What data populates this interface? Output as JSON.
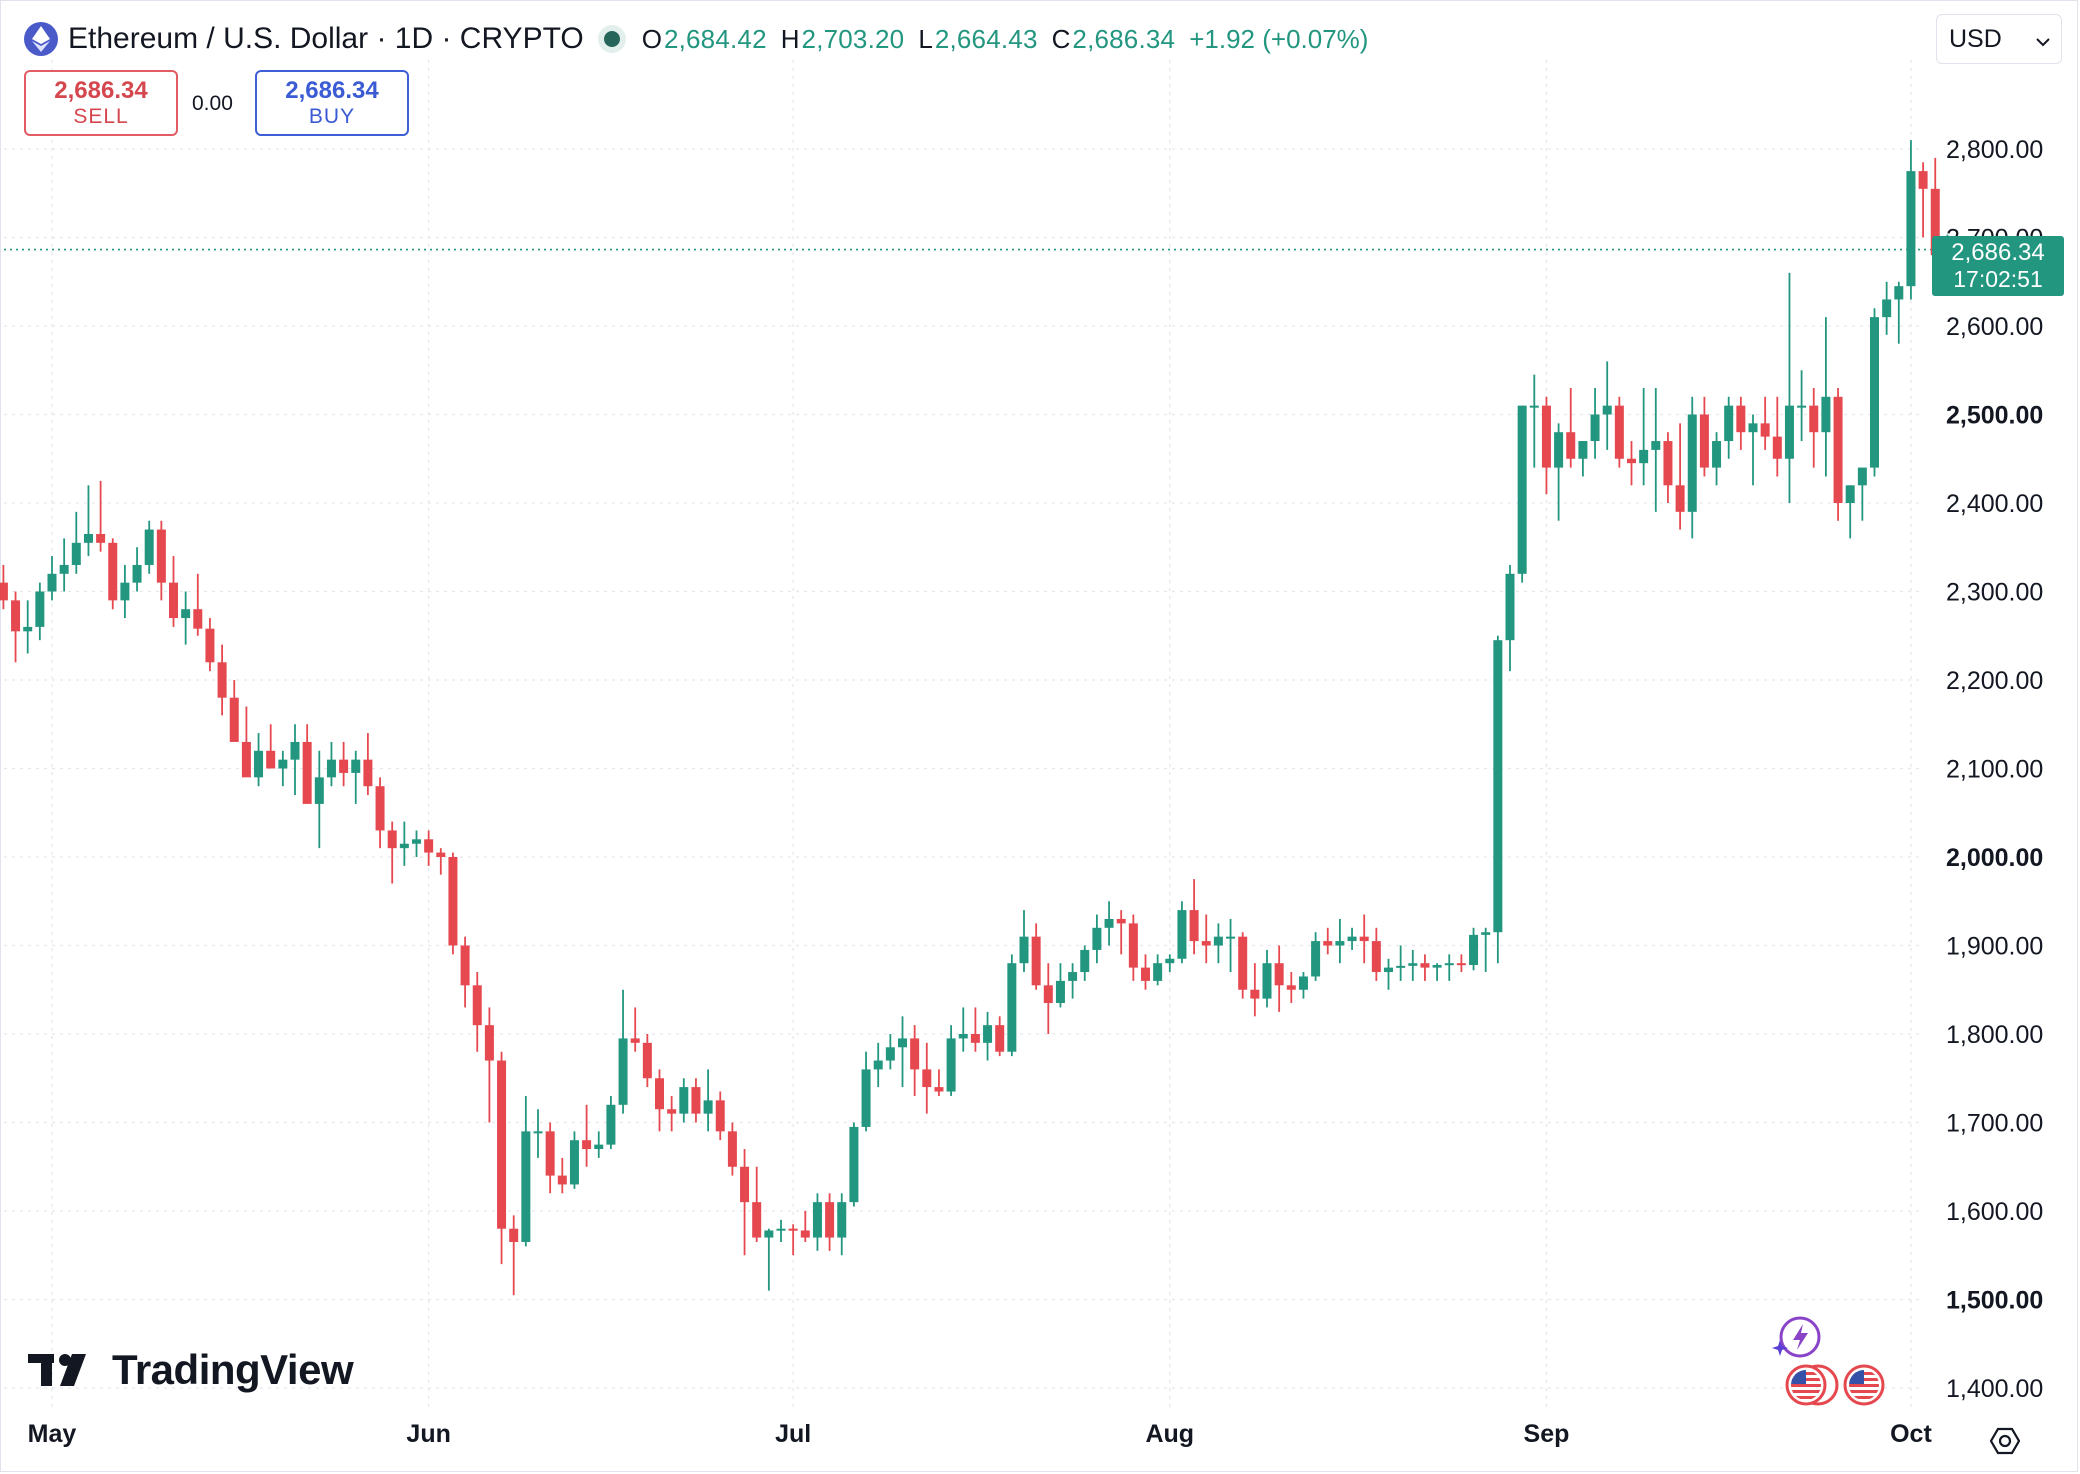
{
  "header": {
    "symbol_title": "Ethereum / U.S. Dollar · 1D · CRYPTO",
    "open_key": "O",
    "open_value": "2,684.42",
    "high_key": "H",
    "high_value": "2,703.20",
    "low_key": "L",
    "low_value": "2,664.43",
    "close_key": "C",
    "close_value": "2,686.34",
    "change": "+1.92 (+0.07%)",
    "logo_icon": "ethereum-icon"
  },
  "currency_selector": {
    "value": "USD",
    "icon": "chevron-down-icon"
  },
  "trade": {
    "sell_price": "2,686.34",
    "sell_label": "SELL",
    "spread": "0.00",
    "buy_price": "2,686.34",
    "buy_label": "BUY"
  },
  "last_price_tag": {
    "price": "2,686.34",
    "countdown": "17:02:51"
  },
  "branding": {
    "name": "TradingView"
  },
  "colors": {
    "up": "#22967f",
    "down": "#e5484f",
    "grid": "#e4e7ee",
    "accent": "#3f5fd6"
  },
  "chart_data": {
    "type": "candlestick",
    "ylim": [
      1380,
      2840
    ],
    "y_ticks": [
      1400,
      1500,
      1600,
      1700,
      1800,
      1900,
      2000,
      2100,
      2200,
      2300,
      2400,
      2500,
      2600,
      2700,
      2800
    ],
    "y_tick_labels": [
      "1,400.00",
      "1,500.00",
      "1,600.00",
      "1,700.00",
      "1,800.00",
      "1,900.00",
      "2,000.00",
      "2,100.00",
      "2,200.00",
      "2,300.00",
      "2,400.00",
      "2,500.00",
      "2,600.00",
      "2,700.00",
      "2,800.00"
    ],
    "y_bold_ticks": [
      "1,500.00",
      "2,000.00",
      "2,500.00"
    ],
    "x_labels": [
      {
        "label": "May",
        "date": "2024-05-01"
      },
      {
        "label": "Jun",
        "date": "2024-06-01"
      },
      {
        "label": "Jul",
        "date": "2024-07-01"
      },
      {
        "label": "Aug",
        "date": "2024-08-01"
      },
      {
        "label": "Sep",
        "date": "2024-09-01"
      },
      {
        "label": "Oct",
        "date": "2024-10-01"
      }
    ],
    "last_price": 2686.34,
    "candles": [
      [
        "2024-04-26",
        2370,
        2380,
        2290,
        2310
      ],
      [
        "2024-04-27",
        2310,
        2330,
        2280,
        2290
      ],
      [
        "2024-04-28",
        2290,
        2300,
        2220,
        2255
      ],
      [
        "2024-04-29",
        2255,
        2290,
        2230,
        2260
      ],
      [
        "2024-04-30",
        2260,
        2310,
        2245,
        2300
      ],
      [
        "2024-05-01",
        2300,
        2340,
        2290,
        2320
      ],
      [
        "2024-05-02",
        2320,
        2360,
        2300,
        2330
      ],
      [
        "2024-05-03",
        2330,
        2390,
        2320,
        2355
      ],
      [
        "2024-05-04",
        2355,
        2420,
        2340,
        2365
      ],
      [
        "2024-05-05",
        2365,
        2425,
        2345,
        2355
      ],
      [
        "2024-05-06",
        2355,
        2360,
        2280,
        2290
      ],
      [
        "2024-05-07",
        2290,
        2330,
        2270,
        2310
      ],
      [
        "2024-05-08",
        2310,
        2350,
        2300,
        2330
      ],
      [
        "2024-05-09",
        2330,
        2380,
        2320,
        2370
      ],
      [
        "2024-05-10",
        2370,
        2380,
        2290,
        2310
      ],
      [
        "2024-05-11",
        2310,
        2340,
        2260,
        2270
      ],
      [
        "2024-05-12",
        2270,
        2300,
        2240,
        2280
      ],
      [
        "2024-05-13",
        2280,
        2320,
        2250,
        2258
      ],
      [
        "2024-05-14",
        2258,
        2270,
        2210,
        2220
      ],
      [
        "2024-05-15",
        2220,
        2240,
        2160,
        2180
      ],
      [
        "2024-05-16",
        2180,
        2200,
        2140,
        2130
      ],
      [
        "2024-05-17",
        2130,
        2170,
        2100,
        2090
      ],
      [
        "2024-05-18",
        2090,
        2140,
        2080,
        2120
      ],
      [
        "2024-05-19",
        2120,
        2150,
        2100,
        2100
      ],
      [
        "2024-05-20",
        2100,
        2120,
        2080,
        2110
      ],
      [
        "2024-05-21",
        2110,
        2150,
        2070,
        2130
      ],
      [
        "2024-05-22",
        2130,
        2150,
        2060,
        2060
      ],
      [
        "2024-05-23",
        2060,
        2120,
        2010,
        2090
      ],
      [
        "2024-05-24",
        2090,
        2130,
        2080,
        2110
      ],
      [
        "2024-05-25",
        2110,
        2130,
        2080,
        2095
      ],
      [
        "2024-05-26",
        2095,
        2120,
        2060,
        2110
      ],
      [
        "2024-05-27",
        2110,
        2140,
        2070,
        2080
      ],
      [
        "2024-05-28",
        2080,
        2090,
        2010,
        2030
      ],
      [
        "2024-05-29",
        2030,
        2040,
        1970,
        2010
      ],
      [
        "2024-05-30",
        2010,
        2040,
        1990,
        2015
      ],
      [
        "2024-05-31",
        2015,
        2030,
        2000,
        2020
      ],
      [
        "2024-06-01",
        2020,
        2030,
        1990,
        2005
      ],
      [
        "2024-06-02",
        2005,
        2010,
        1980,
        2000
      ],
      [
        "2024-06-03",
        2000,
        2005,
        1890,
        1900
      ],
      [
        "2024-06-04",
        1900,
        1910,
        1830,
        1855
      ],
      [
        "2024-06-05",
        1855,
        1870,
        1780,
        1810
      ],
      [
        "2024-06-06",
        1810,
        1830,
        1700,
        1770
      ],
      [
        "2024-06-07",
        1770,
        1780,
        1540,
        1580
      ],
      [
        "2024-06-08",
        1580,
        1595,
        1505,
        1565
      ],
      [
        "2024-06-09",
        1565,
        1730,
        1560,
        1690
      ],
      [
        "2024-06-10",
        1690,
        1715,
        1660,
        1690
      ],
      [
        "2024-06-11",
        1690,
        1700,
        1620,
        1640
      ],
      [
        "2024-06-12",
        1640,
        1660,
        1620,
        1630
      ],
      [
        "2024-06-13",
        1630,
        1690,
        1625,
        1680
      ],
      [
        "2024-06-14",
        1680,
        1720,
        1650,
        1670
      ],
      [
        "2024-06-15",
        1670,
        1690,
        1660,
        1675
      ],
      [
        "2024-06-16",
        1675,
        1730,
        1670,
        1720
      ],
      [
        "2024-06-17",
        1720,
        1850,
        1710,
        1795
      ],
      [
        "2024-06-18",
        1795,
        1830,
        1780,
        1790
      ],
      [
        "2024-06-19",
        1790,
        1800,
        1740,
        1750
      ],
      [
        "2024-06-20",
        1750,
        1760,
        1690,
        1715
      ],
      [
        "2024-06-21",
        1715,
        1730,
        1690,
        1710
      ],
      [
        "2024-06-22",
        1710,
        1750,
        1700,
        1740
      ],
      [
        "2024-06-23",
        1740,
        1750,
        1700,
        1710
      ],
      [
        "2024-06-24",
        1710,
        1760,
        1690,
        1725
      ],
      [
        "2024-06-25",
        1725,
        1735,
        1680,
        1690
      ],
      [
        "2024-06-26",
        1690,
        1700,
        1640,
        1650
      ],
      [
        "2024-06-27",
        1650,
        1670,
        1550,
        1610
      ],
      [
        "2024-06-28",
        1610,
        1650,
        1565,
        1570
      ],
      [
        "2024-06-29",
        1570,
        1580,
        1510,
        1578
      ],
      [
        "2024-06-30",
        1578,
        1590,
        1565,
        1580
      ],
      [
        "2024-07-01",
        1580,
        1585,
        1550,
        1578
      ],
      [
        "2024-07-02",
        1578,
        1600,
        1565,
        1570
      ],
      [
        "2024-07-03",
        1570,
        1620,
        1555,
        1610
      ],
      [
        "2024-07-04",
        1610,
        1620,
        1555,
        1570
      ],
      [
        "2024-07-05",
        1570,
        1620,
        1550,
        1610
      ],
      [
        "2024-07-06",
        1610,
        1700,
        1605,
        1695
      ],
      [
        "2024-07-07",
        1695,
        1780,
        1690,
        1760
      ],
      [
        "2024-07-08",
        1760,
        1790,
        1740,
        1770
      ],
      [
        "2024-07-09",
        1770,
        1800,
        1760,
        1785
      ],
      [
        "2024-07-10",
        1785,
        1820,
        1740,
        1795
      ],
      [
        "2024-07-11",
        1795,
        1810,
        1730,
        1760
      ],
      [
        "2024-07-12",
        1760,
        1790,
        1710,
        1740
      ],
      [
        "2024-07-13",
        1740,
        1760,
        1730,
        1735
      ],
      [
        "2024-07-14",
        1735,
        1810,
        1730,
        1795
      ],
      [
        "2024-07-15",
        1795,
        1830,
        1780,
        1800
      ],
      [
        "2024-07-16",
        1800,
        1830,
        1780,
        1790
      ],
      [
        "2024-07-17",
        1790,
        1825,
        1770,
        1810
      ],
      [
        "2024-07-18",
        1810,
        1820,
        1775,
        1780
      ],
      [
        "2024-07-19",
        1780,
        1890,
        1775,
        1880
      ],
      [
        "2024-07-20",
        1880,
        1940,
        1870,
        1910
      ],
      [
        "2024-07-21",
        1910,
        1925,
        1850,
        1855
      ],
      [
        "2024-07-22",
        1855,
        1880,
        1800,
        1835
      ],
      [
        "2024-07-23",
        1835,
        1880,
        1830,
        1860
      ],
      [
        "2024-07-24",
        1860,
        1880,
        1840,
        1870
      ],
      [
        "2024-07-25",
        1870,
        1900,
        1860,
        1895
      ],
      [
        "2024-07-26",
        1895,
        1935,
        1880,
        1920
      ],
      [
        "2024-07-27",
        1920,
        1950,
        1900,
        1930
      ],
      [
        "2024-07-28",
        1930,
        1940,
        1890,
        1925
      ],
      [
        "2024-07-29",
        1925,
        1935,
        1860,
        1875
      ],
      [
        "2024-07-30",
        1875,
        1890,
        1850,
        1860
      ],
      [
        "2024-07-31",
        1860,
        1890,
        1855,
        1880
      ],
      [
        "2024-08-01",
        1880,
        1890,
        1870,
        1885
      ],
      [
        "2024-08-02",
        1885,
        1950,
        1880,
        1940
      ],
      [
        "2024-08-03",
        1940,
        1975,
        1890,
        1905
      ],
      [
        "2024-08-04",
        1905,
        1935,
        1880,
        1900
      ],
      [
        "2024-08-05",
        1900,
        1925,
        1880,
        1910
      ],
      [
        "2024-08-06",
        1910,
        1930,
        1870,
        1910
      ],
      [
        "2024-08-07",
        1910,
        1915,
        1840,
        1850
      ],
      [
        "2024-08-08",
        1850,
        1880,
        1820,
        1840
      ],
      [
        "2024-08-09",
        1840,
        1895,
        1830,
        1880
      ],
      [
        "2024-08-10",
        1880,
        1900,
        1825,
        1855
      ],
      [
        "2024-08-11",
        1855,
        1870,
        1835,
        1850
      ],
      [
        "2024-08-12",
        1850,
        1870,
        1840,
        1865
      ],
      [
        "2024-08-13",
        1865,
        1915,
        1860,
        1905
      ],
      [
        "2024-08-14",
        1905,
        1920,
        1890,
        1900
      ],
      [
        "2024-08-15",
        1900,
        1930,
        1880,
        1905
      ],
      [
        "2024-08-16",
        1905,
        1920,
        1895,
        1910
      ],
      [
        "2024-08-17",
        1910,
        1935,
        1880,
        1905
      ],
      [
        "2024-08-18",
        1905,
        1920,
        1860,
        1870
      ],
      [
        "2024-08-19",
        1870,
        1885,
        1850,
        1875
      ],
      [
        "2024-08-20",
        1875,
        1900,
        1860,
        1877
      ],
      [
        "2024-08-21",
        1877,
        1895,
        1860,
        1880
      ],
      [
        "2024-08-22",
        1880,
        1890,
        1860,
        1875
      ],
      [
        "2024-08-23",
        1875,
        1880,
        1860,
        1878
      ],
      [
        "2024-08-24",
        1878,
        1890,
        1860,
        1880
      ],
      [
        "2024-08-25",
        1880,
        1890,
        1870,
        1878
      ],
      [
        "2024-08-26",
        1878,
        1920,
        1872,
        1912
      ],
      [
        "2024-08-27",
        1912,
        1920,
        1870,
        1915
      ],
      [
        "2024-08-28",
        1915,
        2250,
        1880,
        2245
      ],
      [
        "2024-08-29",
        2245,
        2330,
        2210,
        2320
      ],
      [
        "2024-08-30",
        2320,
        2510,
        2310,
        2510
      ],
      [
        "2024-08-31",
        2510,
        2545,
        2440,
        2510
      ],
      [
        "2024-09-01",
        2510,
        2520,
        2410,
        2440
      ],
      [
        "2024-09-02",
        2440,
        2490,
        2380,
        2480
      ],
      [
        "2024-09-03",
        2480,
        2530,
        2440,
        2450
      ],
      [
        "2024-09-04",
        2450,
        2470,
        2430,
        2470
      ],
      [
        "2024-09-05",
        2470,
        2530,
        2450,
        2500
      ],
      [
        "2024-09-06",
        2500,
        2560,
        2460,
        2510
      ],
      [
        "2024-09-07",
        2510,
        2520,
        2440,
        2450
      ],
      [
        "2024-09-08",
        2450,
        2470,
        2420,
        2445
      ],
      [
        "2024-09-09",
        2445,
        2530,
        2420,
        2460
      ],
      [
        "2024-09-10",
        2460,
        2530,
        2390,
        2470
      ],
      [
        "2024-09-11",
        2470,
        2480,
        2400,
        2420
      ],
      [
        "2024-09-12",
        2420,
        2490,
        2370,
        2390
      ],
      [
        "2024-09-13",
        2390,
        2520,
        2360,
        2500
      ],
      [
        "2024-09-14",
        2500,
        2520,
        2430,
        2440
      ],
      [
        "2024-09-15",
        2440,
        2480,
        2420,
        2470
      ],
      [
        "2024-09-16",
        2470,
        2520,
        2450,
        2510
      ],
      [
        "2024-09-17",
        2510,
        2520,
        2460,
        2480
      ],
      [
        "2024-09-18",
        2480,
        2500,
        2420,
        2490
      ],
      [
        "2024-09-19",
        2490,
        2520,
        2460,
        2475
      ],
      [
        "2024-09-20",
        2475,
        2520,
        2430,
        2450
      ],
      [
        "2024-09-21",
        2450,
        2660,
        2400,
        2510
      ],
      [
        "2024-09-22",
        2510,
        2550,
        2470,
        2510
      ],
      [
        "2024-09-23",
        2510,
        2530,
        2440,
        2480
      ],
      [
        "2024-09-24",
        2480,
        2610,
        2430,
        2520
      ],
      [
        "2024-09-25",
        2520,
        2530,
        2380,
        2400
      ],
      [
        "2024-09-26",
        2400,
        2420,
        2360,
        2420
      ],
      [
        "2024-09-27",
        2420,
        2440,
        2380,
        2440
      ],
      [
        "2024-09-28",
        2440,
        2620,
        2430,
        2610
      ],
      [
        "2024-09-29",
        2610,
        2650,
        2590,
        2630
      ],
      [
        "2024-09-30",
        2630,
        2650,
        2580,
        2645
      ],
      [
        "2024-10-01",
        2645,
        2810,
        2630,
        2775
      ],
      [
        "2024-10-02",
        2775,
        2785,
        2700,
        2755
      ],
      [
        "2024-10-03",
        2755,
        2790,
        2640,
        2680
      ],
      [
        "2024-10-04",
        2684.42,
        2703.2,
        2664.43,
        2686.34
      ]
    ]
  }
}
